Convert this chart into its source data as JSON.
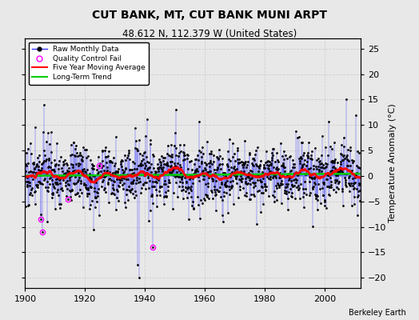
{
  "title": "CUT BANK, MT, CUT BANK MUNI ARPT",
  "subtitle": "48.612 N, 112.379 W (United States)",
  "ylabel": "Temperature Anomaly (°C)",
  "credit": "Berkeley Earth",
  "ylim": [
    -22,
    27
  ],
  "yticks": [
    -20,
    -15,
    -10,
    -5,
    0,
    5,
    10,
    15,
    20,
    25
  ],
  "xlim": [
    1900,
    2012
  ],
  "xticks": [
    1900,
    1920,
    1940,
    1960,
    1980,
    2000
  ],
  "start_year": 1900,
  "end_year": 2011,
  "seed": 17,
  "raw_color": "#3333ff",
  "moving_avg_color": "#ff0000",
  "trend_color": "#00cc00",
  "qc_color": "#ff00ff",
  "background_color": "#e8e8e8",
  "grid_color": "#d0d0d0",
  "title_fontsize": 10,
  "subtitle_fontsize": 8.5,
  "label_fontsize": 8,
  "tick_fontsize": 8
}
